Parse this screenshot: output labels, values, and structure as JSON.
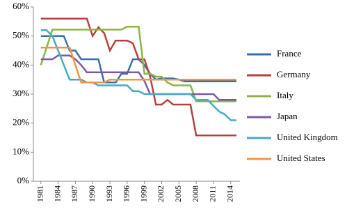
{
  "chart_data": {
    "type": "line",
    "x": [
      1981,
      1982,
      1983,
      1984,
      1985,
      1986,
      1987,
      1988,
      1989,
      1990,
      1991,
      1992,
      1993,
      1994,
      1995,
      1996,
      1997,
      1998,
      1999,
      2000,
      2001,
      2002,
      2003,
      2004,
      2005,
      2006,
      2007,
      2008,
      2009,
      2010,
      2011,
      2012,
      2013,
      2014,
      2015
    ],
    "xlim": [
      1979.7,
      2015.6
    ],
    "xticks": [
      1981,
      1984,
      1987,
      1990,
      1993,
      1996,
      1999,
      2002,
      2005,
      2008,
      2011,
      2014
    ],
    "ylim": [
      0,
      60
    ],
    "yticks": [
      {
        "value": 0,
        "label": "0%"
      },
      {
        "value": 10,
        "label": "10%"
      },
      {
        "value": 20,
        "label": "20%"
      },
      {
        "value": 30,
        "label": "30%"
      },
      {
        "value": 40,
        "label": "40%"
      },
      {
        "value": 50,
        "label": "50%"
      },
      {
        "value": 60,
        "label": "60%"
      }
    ],
    "grid": false,
    "legend": "right",
    "series": [
      {
        "name": "France",
        "color": "#3a6ea8",
        "values": [
          50,
          50,
          50,
          50,
          50,
          45,
          45,
          42,
          42,
          42,
          42,
          34,
          34,
          34,
          37,
          37,
          42,
          42,
          40,
          37,
          35,
          35.4,
          35.4,
          35.4,
          35,
          34.4,
          34.4,
          34.4,
          34.4,
          34.4,
          34.4,
          34.4,
          34.4,
          34.4,
          34.4
        ]
      },
      {
        "name": "Germany",
        "color": "#b5413e",
        "values": [
          56,
          56,
          56,
          56,
          56,
          56,
          56,
          56,
          56,
          50,
          53,
          51,
          45,
          48.4,
          48.4,
          48.4,
          47.5,
          42,
          42,
          36,
          26.4,
          26.4,
          28,
          26.4,
          26.4,
          26.4,
          26.4,
          15.8,
          15.8,
          15.8,
          15.8,
          15.8,
          15.8,
          15.8,
          15.8
        ]
      },
      {
        "name": "Italy",
        "color": "#8db346",
        "values": [
          40,
          46,
          52.2,
          52.2,
          52.2,
          52.2,
          52.2,
          52.2,
          52.2,
          52.2,
          52.2,
          52.2,
          52.2,
          52.2,
          52.2,
          53.2,
          53.2,
          53.2,
          37,
          37,
          36,
          36,
          34,
          33,
          33,
          33,
          33,
          27.5,
          27.5,
          27.5,
          27.5,
          27.5,
          27.5,
          27.5,
          27.5
        ]
      },
      {
        "name": "Japan",
        "color": "#7a59a4",
        "values": [
          42,
          42,
          42,
          43.3,
          43.3,
          43.3,
          42,
          40,
          37.5,
          37.5,
          37.5,
          37.5,
          37.5,
          37.5,
          37.5,
          37.5,
          37.5,
          37.5,
          34.5,
          30,
          30,
          30,
          30,
          30,
          30,
          30,
          30,
          30,
          30,
          30,
          30,
          28,
          28,
          28,
          28
        ]
      },
      {
        "name": "United Kingdom",
        "color": "#46aac4",
        "values": [
          52,
          52,
          50,
          45,
          40,
          35,
          35,
          35,
          34,
          34,
          33,
          33,
          33,
          33,
          33,
          33,
          31,
          31,
          30,
          30,
          30,
          30,
          30,
          30,
          30,
          30,
          30,
          28,
          28,
          28,
          26,
          24,
          23,
          21,
          21
        ]
      },
      {
        "name": "United States",
        "color": "#f39443",
        "values": [
          46,
          46,
          46,
          46,
          46,
          46,
          40,
          34,
          34,
          34,
          34,
          34,
          35,
          35,
          35,
          35,
          35,
          35,
          35,
          35,
          35,
          35,
          35,
          35,
          35,
          35,
          35,
          35,
          35,
          35,
          35,
          35,
          35,
          35,
          35
        ]
      }
    ]
  }
}
